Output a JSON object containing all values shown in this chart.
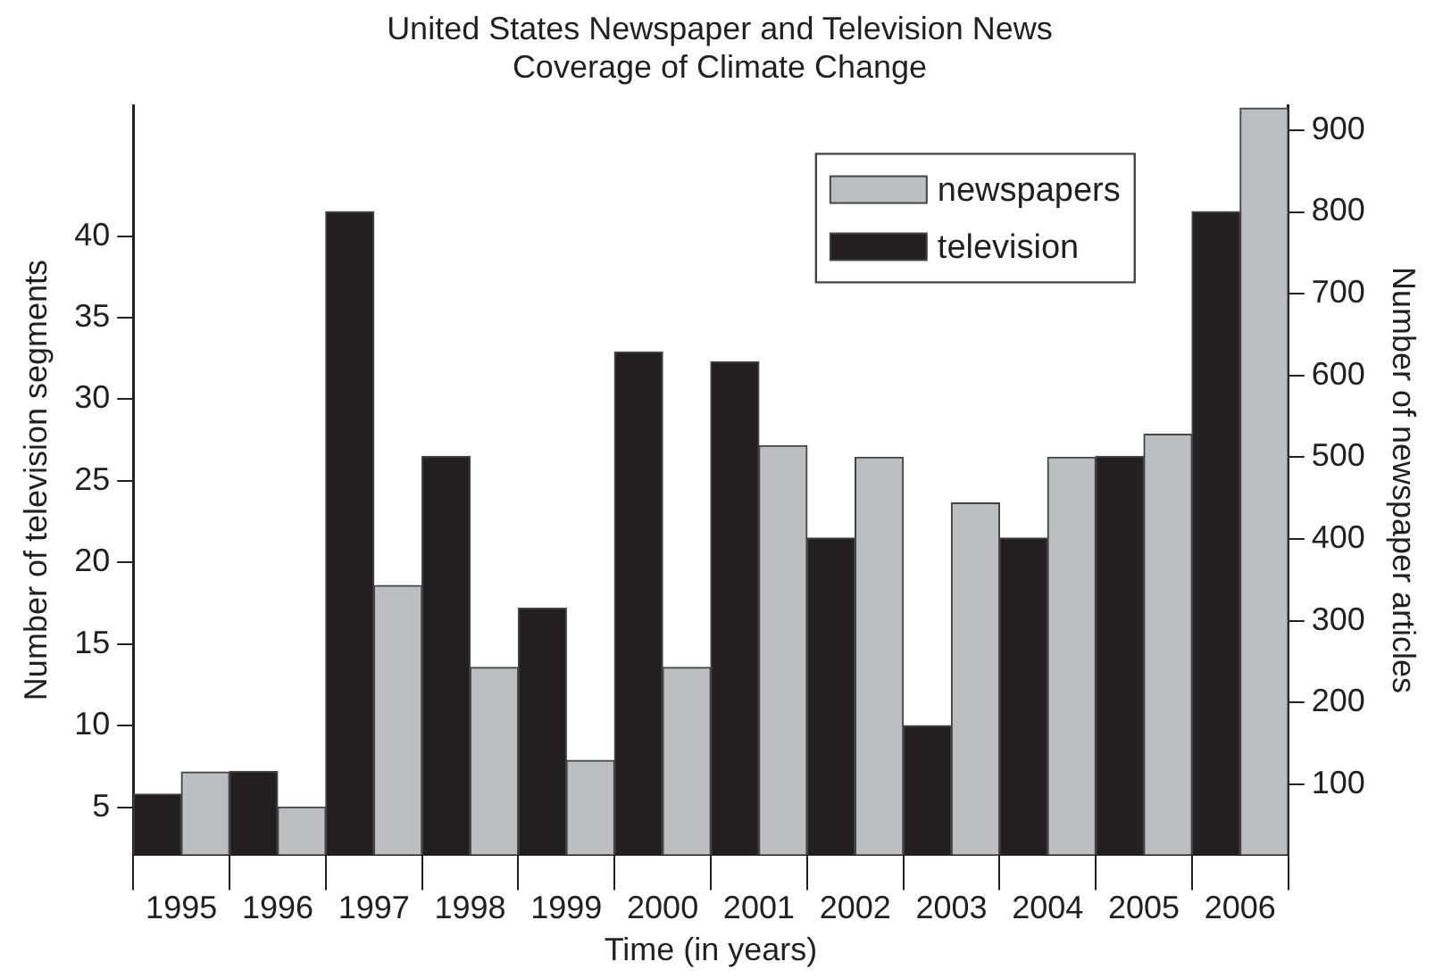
{
  "chart_data": {
    "type": "bar",
    "title": "United States Newspaper and Television News\nCoverage of Climate Change",
    "xlabel": "Time (in years)",
    "ylabel": "Number of television segments",
    "y2label": "Number of newspaper articles",
    "categories": [
      "1995",
      "1996",
      "1997",
      "1998",
      "1999",
      "2000",
      "2001",
      "2002",
      "2003",
      "2004",
      "2005",
      "2006"
    ],
    "series": [
      {
        "name": "television",
        "color": "#231f20",
        "values": [
          5.8,
          7.2,
          41.5,
          26.5,
          17.2,
          32.9,
          32.3,
          21.5,
          10.0,
          21.5,
          26.5,
          41.5
        ]
      },
      {
        "name": "newspapers",
        "color": "#bcbec0",
        "axis": "y2",
        "values": [
          115,
          72,
          343,
          243,
          129,
          243,
          514,
          500,
          444,
          500,
          528,
          927
        ]
      }
    ],
    "ylim": [
      2.1,
      48
    ],
    "yticks": [
      5,
      10,
      15,
      20,
      25,
      30,
      35,
      40
    ],
    "y2lim": [
      14,
      930
    ],
    "y2ticks": [
      100,
      200,
      300,
      400,
      500,
      600,
      700,
      800,
      900
    ],
    "grid": false,
    "legend": "top right"
  }
}
